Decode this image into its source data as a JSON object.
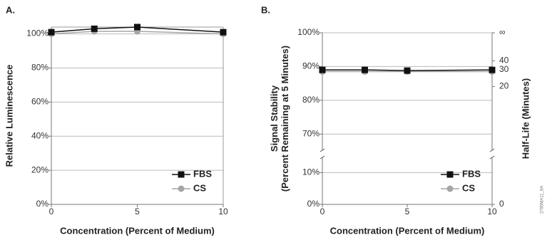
{
  "chart_data": [
    {
      "type": "line",
      "panel_label": "A.",
      "xlabel": "Concentration (Percent of Medium)",
      "ylabel": "Relative Luminescence",
      "x": [
        0,
        2.5,
        5,
        10
      ],
      "series": [
        {
          "name": "FBS",
          "color": "#111111",
          "marker": "square",
          "values": [
            101,
            103,
            104,
            101
          ]
        },
        {
          "name": "CS",
          "color": "#a6a6a6",
          "marker": "circle",
          "values": [
            100,
            101.5,
            101.5,
            100
          ]
        }
      ],
      "xlim": [
        0,
        10
      ],
      "xticks": [
        0,
        5,
        10
      ],
      "ylim": [
        0,
        104
      ],
      "yticks": [
        {
          "value": 0,
          "label": "0%"
        },
        {
          "value": 20,
          "label": "20%"
        },
        {
          "value": 40,
          "label": "40%"
        },
        {
          "value": 60,
          "label": "60%"
        },
        {
          "value": 80,
          "label": "80%"
        },
        {
          "value": 100,
          "label": "100%"
        }
      ],
      "grid": true,
      "legend": "lower right"
    },
    {
      "type": "line",
      "panel_label": "B.",
      "xlabel": "Concentration (Percent of Medium)",
      "ylabel": "Signal Stability\n(Percent Remaining at 5 Minutes)",
      "y2label": "Half-Life (Minutes)",
      "x": [
        0,
        2.5,
        5,
        10
      ],
      "series": [
        {
          "name": "FBS",
          "color": "#111111",
          "marker": "square",
          "values": [
            89,
            89,
            88.8,
            89
          ]
        },
        {
          "name": "CS",
          "color": "#a6a6a6",
          "marker": "circle",
          "values": [
            88.5,
            88.5,
            88.5,
            88.5
          ]
        }
      ],
      "xlim": [
        0,
        10
      ],
      "xticks": [
        0,
        5,
        10
      ],
      "ylim": [
        0,
        100
      ],
      "ybreak": [
        15,
        65
      ],
      "yticks": [
        {
          "value": 0,
          "label": "0%"
        },
        {
          "value": 10,
          "label": "10%"
        },
        {
          "value": 70,
          "label": "70%"
        },
        {
          "value": 80,
          "label": "80%"
        },
        {
          "value": 90,
          "label": "90%"
        },
        {
          "value": 100,
          "label": "100%"
        }
      ],
      "y2_transform": "half_life_5min",
      "y2ticks": [
        0,
        20,
        30,
        40,
        {
          "value": null,
          "label": "∞"
        }
      ],
      "grid": true,
      "legend": "lower right"
    }
  ],
  "figure_code": "2785MA11_9A"
}
